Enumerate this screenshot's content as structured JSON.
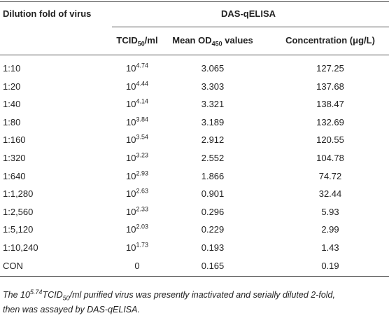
{
  "header": {
    "col1": "Dilution fold of virus",
    "group": "DAS-qELISA",
    "tcid": {
      "main": "TCID",
      "sub": "50",
      "rest": "/ml"
    },
    "od": {
      "main": "Mean OD",
      "sub": "450",
      "rest": " values"
    },
    "conc": "Concentration (μg/L)"
  },
  "rows": [
    {
      "dilution": "1:10",
      "tcid": {
        "base": "10",
        "exp": "4.74"
      },
      "od": "3.065",
      "conc": "127.25"
    },
    {
      "dilution": "1:20",
      "tcid": {
        "base": "10",
        "exp": "4.44"
      },
      "od": "3.303",
      "conc": "137.68"
    },
    {
      "dilution": "1:40",
      "tcid": {
        "base": "10",
        "exp": "4.14"
      },
      "od": "3.321",
      "conc": "138.47"
    },
    {
      "dilution": "1:80",
      "tcid": {
        "base": "10",
        "exp": "3.84"
      },
      "od": "3.189",
      "conc": "132.69"
    },
    {
      "dilution": "1:160",
      "tcid": {
        "base": "10",
        "exp": "3.54"
      },
      "od": "2.912",
      "conc": "120.55"
    },
    {
      "dilution": "1:320",
      "tcid": {
        "base": "10",
        "exp": "3.23"
      },
      "od": "2.552",
      "conc": "104.78"
    },
    {
      "dilution": "1:640",
      "tcid": {
        "base": "10",
        "exp": "2.93"
      },
      "od": "1.866",
      "conc": "74.72"
    },
    {
      "dilution": "1:1,280",
      "tcid": {
        "base": "10",
        "exp": "2.63"
      },
      "od": "0.901",
      "conc": "32.44"
    },
    {
      "dilution": "1:2,560",
      "tcid": {
        "base": "10",
        "exp": "2.33"
      },
      "od": "0.296",
      "conc": "5.93"
    },
    {
      "dilution": "1:5,120",
      "tcid": {
        "base": "10",
        "exp": "2.03"
      },
      "od": "0.229",
      "conc": "2.99"
    },
    {
      "dilution": "1:10,240",
      "tcid": {
        "base": "10",
        "exp": "1.73"
      },
      "od": "0.193",
      "conc": "1.43"
    },
    {
      "dilution": "CON",
      "tcid": "0",
      "od": "0.165",
      "conc": "0.19"
    }
  ],
  "footnote": {
    "pre": "The ",
    "base": "10",
    "exp": "5.74",
    "unit": "TCID",
    "sub": "50",
    "line1_rest": "/ml purified virus was presently inactivated and serially diluted 2-fold,",
    "line2": "then was assayed by DAS-qELISA."
  }
}
